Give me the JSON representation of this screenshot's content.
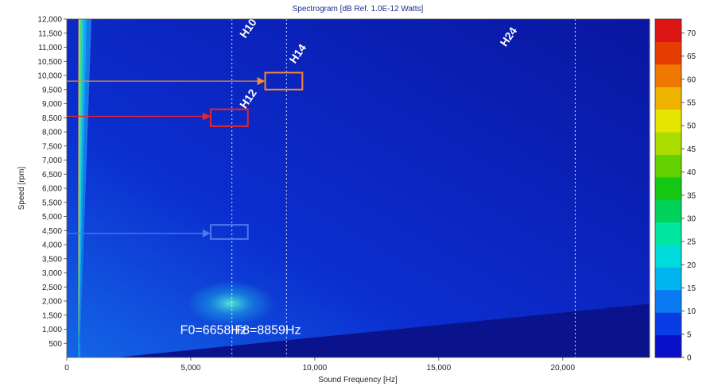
{
  "chart_data": {
    "type": "heatmap",
    "title": "Spectrogram [dB Ref. 1.0E-12 Watts]",
    "xlabel": "Sound Frequency [Hz]",
    "ylabel": "Speed [rpm]",
    "xlim": [
      0,
      23500
    ],
    "ylim": [
      0,
      12000
    ],
    "x_ticks": [
      0,
      5000,
      10000,
      15000,
      20000
    ],
    "x_tick_labels": [
      "0",
      "5,000",
      "10,000",
      "15,000",
      "20,000"
    ],
    "y_ticks": [
      500,
      1000,
      1500,
      2000,
      2500,
      3000,
      3500,
      4000,
      4500,
      5000,
      5500,
      6000,
      6500,
      7000,
      7500,
      8000,
      8500,
      9000,
      9500,
      10000,
      10500,
      11000,
      11500,
      12000
    ],
    "y_tick_labels": [
      "500",
      "1,000",
      "1,500",
      "2,000",
      "2,500",
      "3,000",
      "3,500",
      "4,000",
      "4,500",
      "5,000",
      "5,500",
      "6,000",
      "6,500",
      "7,000",
      "7,500",
      "8,000",
      "8,500",
      "9,000",
      "9,500",
      "10,000",
      "10,500",
      "11,000",
      "11,500",
      "12,000"
    ],
    "colorbar": {
      "min": 0,
      "max": 73,
      "ticks": [
        0,
        5,
        10,
        15,
        20,
        25,
        30,
        35,
        40,
        45,
        50,
        55,
        60,
        65,
        70
      ],
      "colors": [
        "#0a10c8",
        "#0a3ce6",
        "#0a78f0",
        "#00b4f0",
        "#00dcdc",
        "#00e6a0",
        "#00d25a",
        "#14c814",
        "#64d200",
        "#aadc00",
        "#e6e600",
        "#f0b400",
        "#f07800",
        "#e63c00",
        "#dc1414"
      ]
    },
    "harmonic_labels": [
      {
        "text": "H10",
        "x": 7200,
        "y": 11300
      },
      {
        "text": "H12",
        "x": 7200,
        "y": 8800
      },
      {
        "text": "H14",
        "x": 9200,
        "y": 10400
      },
      {
        "text": "H24",
        "x": 17700,
        "y": 11000
      }
    ],
    "vertical_markers": [
      {
        "x": 6658,
        "label": "F0=6658Hz"
      },
      {
        "x": 8859,
        "label": "F8=8859Hz"
      },
      {
        "x": 20500,
        "label": ""
      }
    ],
    "marker_boxes": [
      {
        "x0": 5800,
        "x1": 7300,
        "y0": 8200,
        "y1": 8800,
        "color": "#e8242a"
      },
      {
        "x0": 8000,
        "x1": 9500,
        "y0": 9500,
        "y1": 10100,
        "color": "#f08a3c"
      },
      {
        "x0": 5800,
        "x1": 7300,
        "y0": 4200,
        "y1": 4700,
        "color": "#4a7ae6"
      }
    ],
    "arrows": [
      {
        "y": 8550,
        "x_end": 5800,
        "color": "#e8242a"
      },
      {
        "y": 9800,
        "x_end": 8000,
        "color": "#f08a3c"
      },
      {
        "y": 4400,
        "x_end": 5800,
        "color": "#4a7ae6"
      }
    ],
    "colors": {
      "background": "#0b1aa6",
      "marker_line": "#e8e8e8"
    }
  }
}
